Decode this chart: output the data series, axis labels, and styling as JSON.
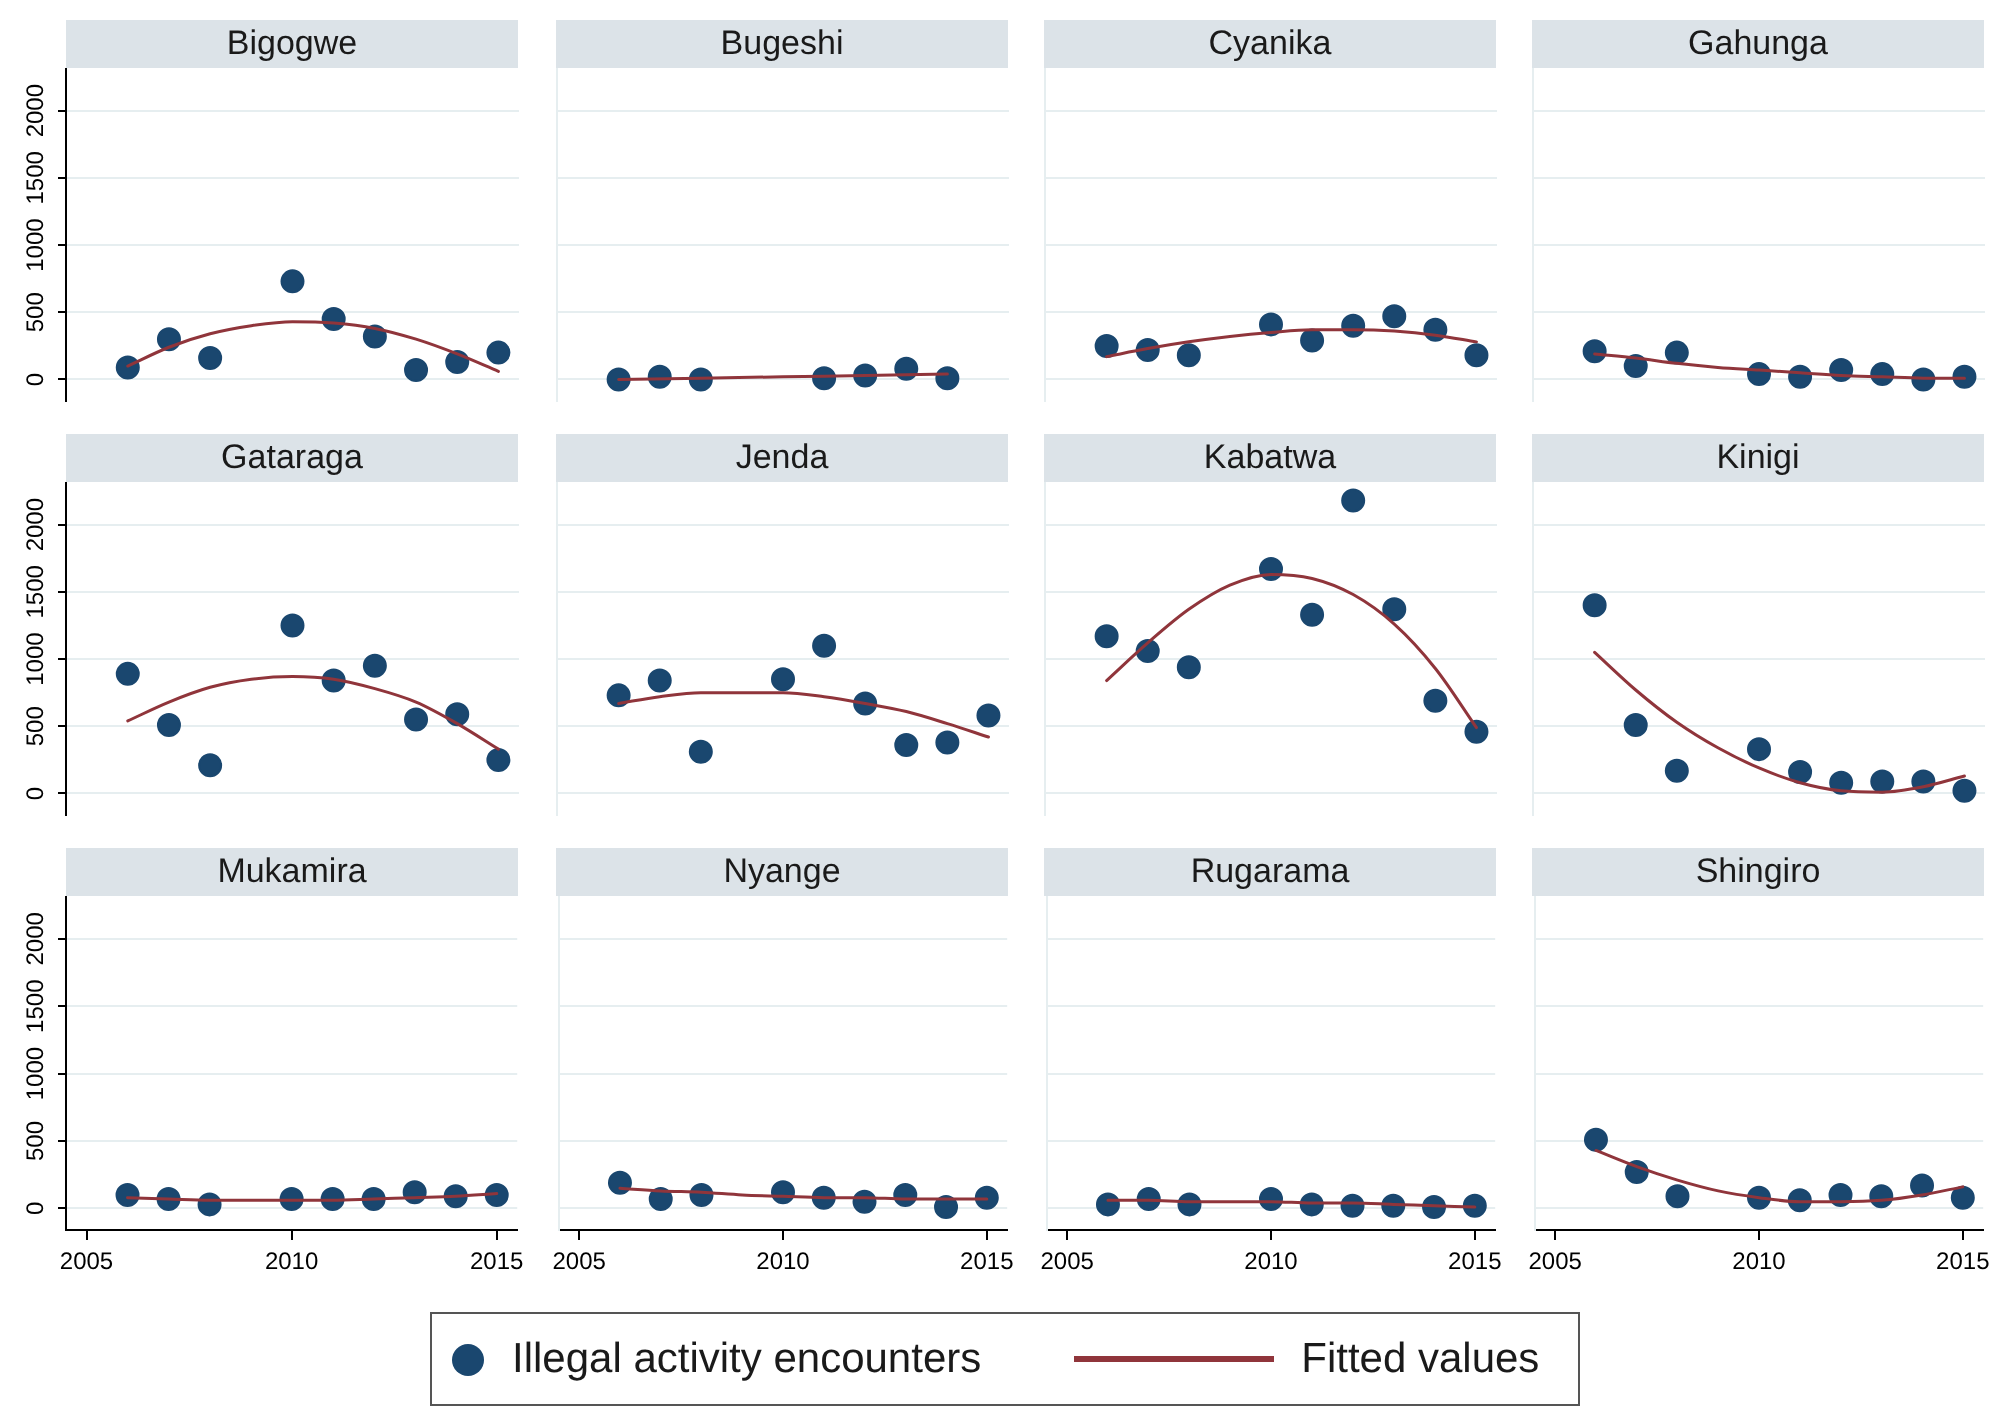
{
  "chart_data": [
    {
      "type": "scatter",
      "title": "Bigogwe",
      "xlim": [
        2004.5,
        2015.5
      ],
      "xticks": [
        2005,
        2010,
        2015
      ],
      "ylim": [
        -160,
        2310
      ],
      "yticks": [
        0,
        500,
        1000,
        1500,
        2000
      ],
      "grid": "y",
      "tick_labels": "y",
      "marker": "circle",
      "series": [
        {
          "color": "#1a476f",
          "x": [
            2006,
            2007,
            2008,
            2010,
            2011,
            2012,
            2013,
            2014,
            2015
          ],
          "values": [
            90,
            300,
            160,
            730,
            450,
            320,
            70,
            130,
            200
          ]
        },
        {
          "type": "line",
          "marker": "none",
          "color": "#90353b",
          "x": [
            2006,
            2007,
            2008,
            2009,
            2010,
            2011,
            2012,
            2013,
            2014,
            2015
          ],
          "values": [
            100,
            240,
            340,
            400,
            430,
            420,
            380,
            300,
            190,
            60
          ]
        }
      ]
    },
    {
      "type": "scatter",
      "title": "Bugeshi",
      "xlim": [
        2004.5,
        2015.5
      ],
      "xticks": [
        2005,
        2010,
        2015
      ],
      "ylim": [
        -160,
        2310
      ],
      "yticks": [
        0,
        500,
        1000,
        1500,
        2000
      ],
      "grid": "y",
      "tick_labels": false,
      "marker": "circle",
      "series": [
        {
          "color": "#1a476f",
          "x": [
            2006,
            2007,
            2008,
            2011,
            2012,
            2013,
            2014
          ],
          "values": [
            0,
            20,
            0,
            10,
            30,
            80,
            10
          ]
        },
        {
          "type": "line",
          "marker": "none",
          "color": "#90353b",
          "x": [
            2006,
            2008,
            2010,
            2012,
            2014
          ],
          "values": [
            0,
            10,
            20,
            30,
            40
          ]
        }
      ]
    },
    {
      "type": "scatter",
      "title": "Cyanika",
      "xlim": [
        2004.5,
        2015.5
      ],
      "xticks": [
        2005,
        2010,
        2015
      ],
      "ylim": [
        -160,
        2310
      ],
      "yticks": [
        0,
        500,
        1000,
        1500,
        2000
      ],
      "grid": "y",
      "tick_labels": false,
      "marker": "circle",
      "series": [
        {
          "color": "#1a476f",
          "x": [
            2006,
            2007,
            2008,
            2010,
            2011,
            2012,
            2013,
            2014,
            2015
          ],
          "values": [
            250,
            220,
            180,
            410,
            290,
            400,
            470,
            370,
            180
          ]
        },
        {
          "type": "line",
          "marker": "none",
          "color": "#90353b",
          "x": [
            2006,
            2007,
            2008,
            2009,
            2010,
            2011,
            2012,
            2013,
            2014,
            2015
          ],
          "values": [
            170,
            230,
            280,
            320,
            350,
            370,
            370,
            360,
            330,
            280
          ]
        }
      ]
    },
    {
      "type": "scatter",
      "title": "Gahunga",
      "xlim": [
        2004.5,
        2015.5
      ],
      "xticks": [
        2005,
        2010,
        2015
      ],
      "ylim": [
        -160,
        2310
      ],
      "yticks": [
        0,
        500,
        1000,
        1500,
        2000
      ],
      "grid": "y",
      "tick_labels": false,
      "marker": "circle",
      "series": [
        {
          "color": "#1a476f",
          "x": [
            2006,
            2007,
            2008,
            2010,
            2011,
            2012,
            2013,
            2014,
            2015
          ],
          "values": [
            210,
            100,
            200,
            40,
            20,
            70,
            40,
            0,
            20
          ]
        },
        {
          "type": "line",
          "marker": "none",
          "color": "#90353b",
          "x": [
            2006,
            2007,
            2008,
            2009,
            2010,
            2011,
            2012,
            2013,
            2014,
            2015
          ],
          "values": [
            190,
            160,
            120,
            90,
            70,
            50,
            30,
            20,
            10,
            10
          ]
        }
      ]
    },
    {
      "type": "scatter",
      "title": "Gataraga",
      "xlim": [
        2004.5,
        2015.5
      ],
      "xticks": [
        2005,
        2010,
        2015
      ],
      "ylim": [
        -160,
        2310
      ],
      "yticks": [
        0,
        500,
        1000,
        1500,
        2000
      ],
      "grid": "y",
      "tick_labels": "y",
      "marker": "circle",
      "series": [
        {
          "color": "#1a476f",
          "x": [
            2006,
            2007,
            2008,
            2010,
            2011,
            2012,
            2013,
            2014,
            2015
          ],
          "values": [
            890,
            510,
            210,
            1250,
            840,
            950,
            550,
            590,
            250
          ]
        },
        {
          "type": "line",
          "marker": "none",
          "color": "#90353b",
          "x": [
            2006,
            2007,
            2008,
            2009,
            2010,
            2011,
            2012,
            2013,
            2014,
            2015
          ],
          "values": [
            540,
            680,
            790,
            850,
            870,
            850,
            780,
            680,
            520,
            330
          ]
        }
      ]
    },
    {
      "type": "scatter",
      "title": "Jenda",
      "xlim": [
        2004.5,
        2015.5
      ],
      "xticks": [
        2005,
        2010,
        2015
      ],
      "ylim": [
        -160,
        2310
      ],
      "yticks": [
        0,
        500,
        1000,
        1500,
        2000
      ],
      "grid": "y",
      "tick_labels": false,
      "marker": "circle",
      "series": [
        {
          "color": "#1a476f",
          "x": [
            2006,
            2007,
            2008,
            2010,
            2011,
            2012,
            2013,
            2014,
            2015
          ],
          "values": [
            730,
            840,
            310,
            850,
            1100,
            670,
            360,
            380,
            580
          ]
        },
        {
          "type": "line",
          "marker": "none",
          "color": "#90353b",
          "x": [
            2006,
            2007,
            2008,
            2009,
            2010,
            2011,
            2012,
            2013,
            2014,
            2015
          ],
          "values": [
            670,
            720,
            750,
            750,
            750,
            720,
            670,
            610,
            520,
            420
          ]
        }
      ]
    },
    {
      "type": "scatter",
      "title": "Kabatwa",
      "xlim": [
        2004.5,
        2015.5
      ],
      "xticks": [
        2005,
        2010,
        2015
      ],
      "ylim": [
        -160,
        2310
      ],
      "yticks": [
        0,
        500,
        1000,
        1500,
        2000
      ],
      "grid": "y",
      "tick_labels": false,
      "marker": "circle",
      "series": [
        {
          "color": "#1a476f",
          "x": [
            2006,
            2007,
            2008,
            2010,
            2011,
            2012,
            2013,
            2014,
            2015
          ],
          "values": [
            1170,
            1060,
            940,
            1670,
            1330,
            2180,
            1370,
            690,
            460
          ]
        },
        {
          "type": "line",
          "marker": "none",
          "color": "#90353b",
          "x": [
            2006,
            2007,
            2008,
            2009,
            2010,
            2011,
            2012,
            2013,
            2014,
            2015
          ],
          "values": [
            840,
            1120,
            1370,
            1550,
            1630,
            1600,
            1480,
            1260,
            930,
            490
          ]
        }
      ]
    },
    {
      "type": "scatter",
      "title": "Kinigi",
      "xlim": [
        2004.5,
        2015.5
      ],
      "xticks": [
        2005,
        2010,
        2015
      ],
      "ylim": [
        -160,
        2310
      ],
      "yticks": [
        0,
        500,
        1000,
        1500,
        2000
      ],
      "grid": "y",
      "tick_labels": false,
      "marker": "circle",
      "series": [
        {
          "color": "#1a476f",
          "x": [
            2006,
            2007,
            2008,
            2010,
            2011,
            2012,
            2013,
            2014,
            2015
          ],
          "values": [
            1400,
            510,
            170,
            330,
            160,
            80,
            90,
            90,
            20
          ]
        },
        {
          "type": "line",
          "marker": "none",
          "color": "#90353b",
          "x": [
            2006,
            2007,
            2008,
            2009,
            2010,
            2011,
            2012,
            2013,
            2014,
            2015
          ],
          "values": [
            1050,
            770,
            530,
            340,
            190,
            80,
            20,
            10,
            50,
            130
          ]
        }
      ]
    },
    {
      "type": "scatter",
      "title": "Mukamira",
      "xlim": [
        2004.5,
        2015.5
      ],
      "xticks": [
        2005,
        2010,
        2015
      ],
      "ylim": [
        -160,
        2310
      ],
      "yticks": [
        0,
        500,
        1000,
        1500,
        2000
      ],
      "grid": "y",
      "marker": "circle",
      "series": [
        {
          "color": "#1a476f",
          "x": [
            2006,
            2007,
            2008,
            2010,
            2011,
            2012,
            2013,
            2014,
            2015
          ],
          "values": [
            100,
            70,
            30,
            70,
            70,
            70,
            120,
            90,
            100
          ]
        },
        {
          "type": "line",
          "marker": "none",
          "color": "#90353b",
          "x": [
            2006,
            2007,
            2008,
            2009,
            2010,
            2011,
            2012,
            2013,
            2014,
            2015
          ],
          "values": [
            80,
            70,
            60,
            60,
            60,
            60,
            70,
            80,
            90,
            110
          ]
        }
      ]
    },
    {
      "type": "scatter",
      "title": "Nyange",
      "xlim": [
        2004.5,
        2015.5
      ],
      "xticks": [
        2005,
        2010,
        2015
      ],
      "ylim": [
        -160,
        2310
      ],
      "yticks": [
        0,
        500,
        1000,
        1500,
        2000
      ],
      "grid": "y",
      "tick_labels": "x",
      "marker": "circle",
      "legend": "bottom",
      "series": [
        {
          "name": "Illegal activity encounters",
          "color": "#1a476f",
          "x": [
            2006,
            2007,
            2008,
            2010,
            2011,
            2012,
            2013,
            2014,
            2015
          ],
          "values": [
            190,
            70,
            100,
            120,
            80,
            50,
            100,
            10,
            80
          ]
        },
        {
          "name": "Fitted values",
          "type": "line",
          "marker": "none",
          "color": "#90353b",
          "x": [
            2006,
            2007,
            2008,
            2009,
            2010,
            2011,
            2012,
            2013,
            2014,
            2015
          ],
          "values": [
            150,
            130,
            120,
            100,
            90,
            80,
            80,
            70,
            70,
            70
          ]
        }
      ]
    },
    {
      "type": "scatter",
      "title": "Rugarama",
      "xlim": [
        2004.5,
        2015.5
      ],
      "xticks": [
        2005,
        2010,
        2015
      ],
      "ylim": [
        -160,
        2310
      ],
      "yticks": [
        0,
        500,
        1000,
        1500,
        2000
      ],
      "grid": "y",
      "tick_labels": "x",
      "marker": "circle",
      "series": [
        {
          "color": "#1a476f",
          "x": [
            2006,
            2007,
            2008,
            2010,
            2011,
            2012,
            2013,
            2014,
            2015
          ],
          "values": [
            30,
            70,
            30,
            70,
            30,
            20,
            20,
            10,
            20
          ]
        },
        {
          "type": "line",
          "marker": "none",
          "color": "#90353b",
          "x": [
            2006,
            2007,
            2008,
            2009,
            2010,
            2011,
            2012,
            2013,
            2014,
            2015
          ],
          "values": [
            60,
            60,
            50,
            50,
            50,
            40,
            40,
            30,
            20,
            10
          ]
        }
      ]
    },
    {
      "type": "scatter",
      "title": "Shingiro",
      "xlim": [
        2004.5,
        2015.5
      ],
      "xticks": [
        2005,
        2010,
        2015
      ],
      "ylim": [
        -160,
        2310
      ],
      "yticks": [
        0,
        500,
        1000,
        1500,
        2000
      ],
      "grid": "y",
      "tick_labels": "x",
      "marker": "circle",
      "series": [
        {
          "color": "#1a476f",
          "x": [
            2006,
            2007,
            2008,
            2010,
            2011,
            2012,
            2013,
            2014,
            2015
          ],
          "values": [
            510,
            270,
            90,
            80,
            60,
            100,
            90,
            170,
            80
          ]
        },
        {
          "type": "line",
          "marker": "none",
          "color": "#90353b",
          "x": [
            2006,
            2007,
            2008,
            2009,
            2010,
            2011,
            2012,
            2013,
            2014,
            2015
          ],
          "values": [
            430,
            310,
            210,
            130,
            80,
            50,
            50,
            60,
            100,
            160
          ]
        }
      ]
    }
  ]
}
